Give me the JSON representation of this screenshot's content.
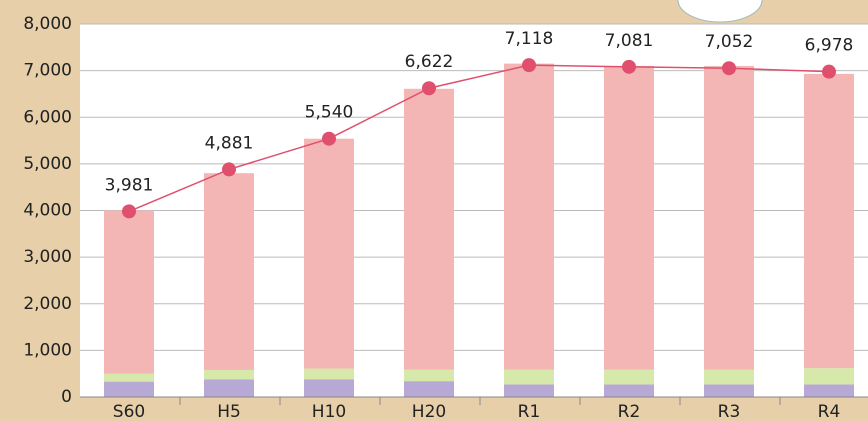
{
  "chart_data": {
    "type": "bar",
    "categories": [
      "S60",
      "H5",
      "H10",
      "H20",
      "R1",
      "R2",
      "R3",
      "R4"
    ],
    "series": [
      {
        "color": "#b7a8d6",
        "values": [
          330,
          380,
          380,
          340,
          270,
          270,
          270,
          270
        ]
      },
      {
        "color": "#d6e8aa",
        "values": [
          170,
          200,
          230,
          250,
          320,
          320,
          320,
          350
        ]
      },
      {
        "color": "#f4b6b4",
        "values": [
          3500,
          4220,
          4930,
          6020,
          6560,
          6510,
          6510,
          6310
        ]
      },
      {
        "type": "line",
        "color": "#e0506e",
        "values": [
          3981,
          4881,
          5540,
          6622,
          7118,
          7081,
          7052,
          6978
        ],
        "value_labels": [
          "3,981",
          "4,881",
          "5,540",
          "6,622",
          "7,118",
          "7,081",
          "7,052",
          "6,978"
        ]
      }
    ],
    "ylim": [
      0,
      8000
    ],
    "yticks": [
      0,
      {
        "value": 1000,
        "label": "1,000"
      },
      {
        "value": 2000,
        "label": "2,000"
      },
      {
        "value": 3000,
        "label": "3,000"
      },
      {
        "value": 4000,
        "label": "4,000"
      },
      {
        "value": 5000,
        "label": "5,000"
      },
      {
        "value": 6000,
        "label": "6,000"
      },
      {
        "value": 7000,
        "label": "7,000"
      },
      {
        "value": 8000,
        "label": "8,000"
      }
    ],
    "grid": true
  }
}
